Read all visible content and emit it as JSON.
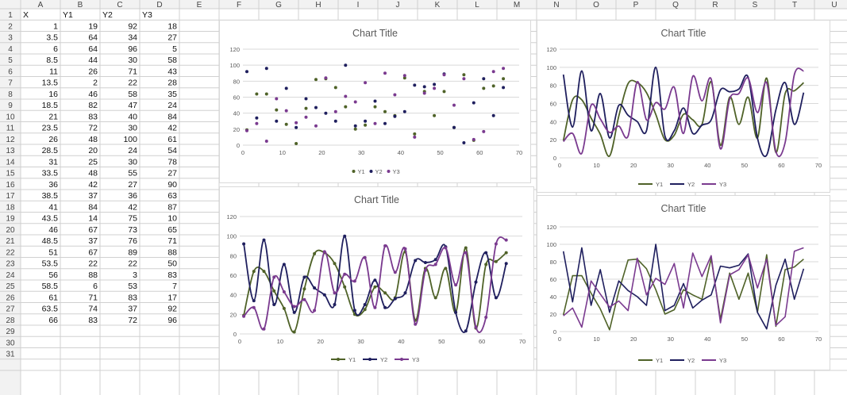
{
  "sheet": {
    "columns": [
      "A",
      "B",
      "C",
      "D",
      "E",
      "F",
      "G",
      "H",
      "I",
      "J",
      "K",
      "L",
      "M",
      "N",
      "O",
      "P",
      "Q",
      "R",
      "S",
      "T",
      "U"
    ],
    "row_numbers": [
      1,
      2,
      3,
      4,
      5,
      6,
      7,
      8,
      9,
      10,
      11,
      12,
      13,
      14,
      15,
      16,
      17,
      18,
      19,
      20,
      21,
      22,
      23,
      24,
      25,
      26,
      27,
      28,
      29,
      30,
      31
    ],
    "headers": [
      "X",
      "Y1",
      "Y2",
      "Y3"
    ],
    "rows": [
      [
        "1",
        "19",
        "92",
        "18"
      ],
      [
        "3.5",
        "64",
        "34",
        "27"
      ],
      [
        "6",
        "64",
        "96",
        "5"
      ],
      [
        "8.5",
        "44",
        "30",
        "58"
      ],
      [
        "11",
        "26",
        "71",
        "43"
      ],
      [
        "13.5",
        "2",
        "22",
        "28"
      ],
      [
        "16",
        "46",
        "58",
        "35"
      ],
      [
        "18.5",
        "82",
        "47",
        "24"
      ],
      [
        "21",
        "83",
        "40",
        "84"
      ],
      [
        "23.5",
        "72",
        "30",
        "42"
      ],
      [
        "26",
        "48",
        "100",
        "61"
      ],
      [
        "28.5",
        "20",
        "24",
        "54"
      ],
      [
        "31",
        "25",
        "30",
        "78"
      ],
      [
        "33.5",
        "48",
        "55",
        "27"
      ],
      [
        "36",
        "42",
        "27",
        "90"
      ],
      [
        "38.5",
        "37",
        "36",
        "63"
      ],
      [
        "41",
        "84",
        "42",
        "87"
      ],
      [
        "43.5",
        "14",
        "75",
        "10"
      ],
      [
        "46",
        "67",
        "73",
        "65"
      ],
      [
        "48.5",
        "37",
        "76",
        "71"
      ],
      [
        "51",
        "67",
        "89",
        "88"
      ],
      [
        "53.5",
        "22",
        "22",
        "50"
      ],
      [
        "56",
        "88",
        "3",
        "83"
      ],
      [
        "58.5",
        "6",
        "53",
        "7"
      ],
      [
        "61",
        "71",
        "83",
        "17"
      ],
      [
        "63.5",
        "74",
        "37",
        "92"
      ],
      [
        "66",
        "83",
        "72",
        "96"
      ]
    ]
  },
  "chart_data": [
    {
      "type": "scatter",
      "title": "Chart Title",
      "xlim": [
        0,
        70
      ],
      "ylim": [
        0,
        120
      ],
      "xticks": [
        "0",
        "10",
        "20",
        "30",
        "40",
        "50",
        "60",
        "70"
      ],
      "yticks": [
        "0",
        "20",
        "40",
        "60",
        "80",
        "100",
        "120"
      ],
      "legend": [
        "Y1",
        "Y2",
        "Y3"
      ],
      "legend_position": "bottom",
      "markers": true,
      "lines": false,
      "smooth": false
    },
    {
      "type": "line",
      "title": "Chart Title",
      "xlim": [
        0,
        70
      ],
      "ylim": [
        0,
        120
      ],
      "xticks": [
        "0",
        "10",
        "20",
        "30",
        "40",
        "50",
        "60",
        "70"
      ],
      "yticks": [
        "0",
        "20",
        "40",
        "60",
        "80",
        "100",
        "120"
      ],
      "legend": [
        "Y1",
        "Y2",
        "Y3"
      ],
      "legend_position": "bottom",
      "markers": false,
      "lines": true,
      "smooth": true
    },
    {
      "type": "line",
      "title": "Chart Title",
      "xlim": [
        0,
        70
      ],
      "ylim": [
        0,
        120
      ],
      "xticks": [
        "0",
        "10",
        "20",
        "30",
        "40",
        "50",
        "60",
        "70"
      ],
      "yticks": [
        "0",
        "20",
        "40",
        "60",
        "80",
        "100",
        "120"
      ],
      "legend": [
        "Y1",
        "Y2",
        "Y3"
      ],
      "legend_position": "bottom",
      "markers": true,
      "lines": true,
      "smooth": true
    },
    {
      "type": "line",
      "title": "Chart Title",
      "xlim": [
        0,
        70
      ],
      "ylim": [
        0,
        120
      ],
      "xticks": [
        "0",
        "10",
        "20",
        "30",
        "40",
        "50",
        "60",
        "70"
      ],
      "yticks": [
        "0",
        "20",
        "40",
        "60",
        "80",
        "100",
        "120"
      ],
      "legend": [
        "Y1",
        "Y2",
        "Y3"
      ],
      "legend_position": "bottom",
      "markers": false,
      "lines": true,
      "smooth": false
    }
  ],
  "series_colors": {
    "Y1": "#4f6228",
    "Y2": "#1f1f5e",
    "Y3": "#7a3a8f"
  },
  "colors": {
    "grid": "#d0d0d0",
    "header_bg": "#f2f2f2",
    "axis_text": "#595959",
    "title": "#595959"
  }
}
